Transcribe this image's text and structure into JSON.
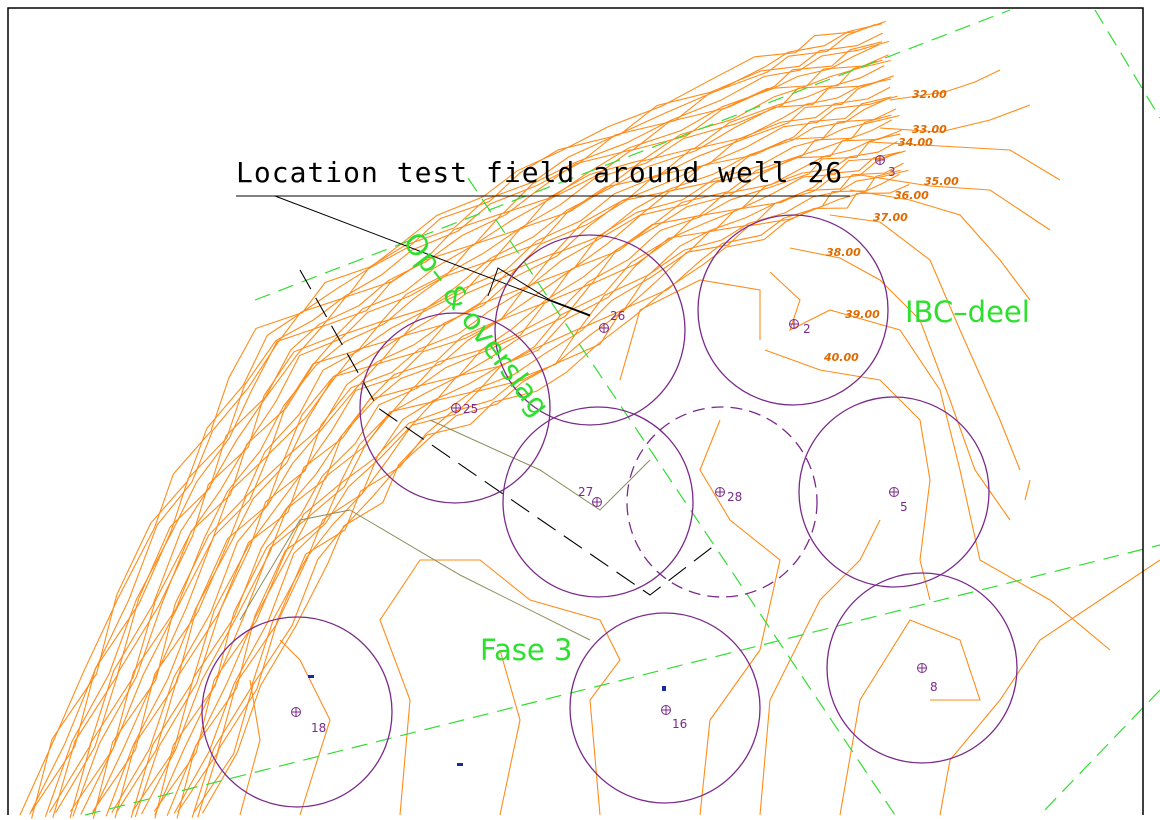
{
  "annotation": "Location test field around well 26",
  "zones": [
    "IBC–deel",
    "Op– & overslag",
    "Fase 3"
  ],
  "contour_labels": [
    "32.00",
    "33.00",
    "34.00",
    "35.00",
    "36.00",
    "37.00",
    "38.00",
    "39.00",
    "40.00"
  ],
  "wells": [
    "3",
    "26",
    "2",
    "25",
    "27",
    "28",
    "5",
    "18",
    "16",
    "8"
  ]
}
